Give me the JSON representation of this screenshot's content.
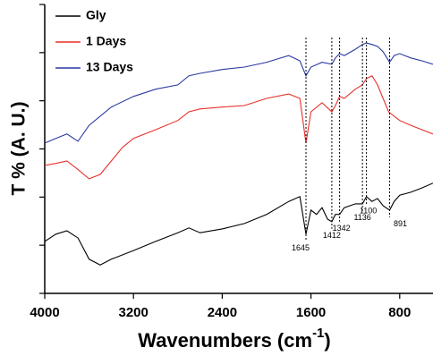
{
  "chart_data": {
    "type": "line",
    "xlabel": {
      "text": "Wavenumbers (cm",
      "sup": "-1",
      "end": ")"
    },
    "ylabel": "T % (A. U.)",
    "xlim": [
      4000,
      500
    ],
    "ylim": [
      0,
      6
    ],
    "xticks": [
      4000,
      3200,
      2400,
      1600,
      800
    ],
    "yticks": [
      0,
      1,
      2,
      3,
      4,
      5,
      6
    ],
    "legend": "upper left",
    "annotations": [
      1645,
      1412,
      1342,
      1136,
      1100,
      891
    ],
    "series": [
      {
        "name": "Gly",
        "color": "#000000",
        "x": [
          4000,
          3900,
          3800,
          3700,
          3600,
          3500,
          3400,
          3200,
          3000,
          2800,
          2700,
          2600,
          2400,
          2200,
          2000,
          1800,
          1700,
          1645,
          1600,
          1550,
          1500,
          1450,
          1412,
          1380,
          1342,
          1300,
          1200,
          1136,
          1100,
          1050,
          1000,
          950,
          891,
          850,
          800,
          700,
          600,
          500
        ],
        "values": [
          1.08,
          1.23,
          1.3,
          1.15,
          0.71,
          0.59,
          0.71,
          0.89,
          1.08,
          1.26,
          1.36,
          1.26,
          1.34,
          1.45,
          1.64,
          1.91,
          2.01,
          1.23,
          1.73,
          1.64,
          1.78,
          1.54,
          1.49,
          1.64,
          1.64,
          1.78,
          1.86,
          1.86,
          2.01,
          1.91,
          1.97,
          1.82,
          1.73,
          1.91,
          2.04,
          2.1,
          2.19,
          2.29
        ]
      },
      {
        "name": "1  Days",
        "color": "#e8302a",
        "x": [
          4000,
          3900,
          3800,
          3700,
          3600,
          3500,
          3400,
          3300,
          3200,
          3000,
          2800,
          2700,
          2600,
          2400,
          2200,
          2000,
          1800,
          1700,
          1645,
          1600,
          1500,
          1412,
          1380,
          1342,
          1300,
          1200,
          1136,
          1100,
          1050,
          1000,
          950,
          900,
          850,
          800,
          700,
          600,
          500
        ],
        "values": [
          2.66,
          2.7,
          2.75,
          2.57,
          2.38,
          2.47,
          2.75,
          3.03,
          3.22,
          3.4,
          3.59,
          3.77,
          3.83,
          3.87,
          3.9,
          4.05,
          4.14,
          4.05,
          3.12,
          3.77,
          3.96,
          3.77,
          3.9,
          4.09,
          4.05,
          4.24,
          4.33,
          4.46,
          4.52,
          4.33,
          4.05,
          3.77,
          3.68,
          3.59,
          3.49,
          3.4,
          3.31
        ]
      },
      {
        "name": "13 Days",
        "color": "#2a3aa0",
        "x": [
          4000,
          3900,
          3800,
          3700,
          3600,
          3400,
          3200,
          3000,
          2800,
          2700,
          2600,
          2400,
          2200,
          2000,
          1800,
          1700,
          1645,
          1600,
          1500,
          1412,
          1380,
          1342,
          1300,
          1200,
          1136,
          1100,
          1050,
          1000,
          950,
          891,
          850,
          800,
          700,
          600,
          500
        ],
        "values": [
          3.12,
          3.22,
          3.31,
          3.16,
          3.49,
          3.87,
          4.09,
          4.24,
          4.33,
          4.52,
          4.57,
          4.65,
          4.7,
          4.8,
          4.94,
          4.83,
          4.52,
          4.7,
          4.8,
          4.76,
          4.89,
          4.98,
          4.94,
          5.07,
          5.17,
          5.2,
          5.17,
          5.13,
          5.02,
          4.8,
          4.94,
          4.98,
          4.89,
          4.83,
          4.76
        ]
      }
    ]
  }
}
